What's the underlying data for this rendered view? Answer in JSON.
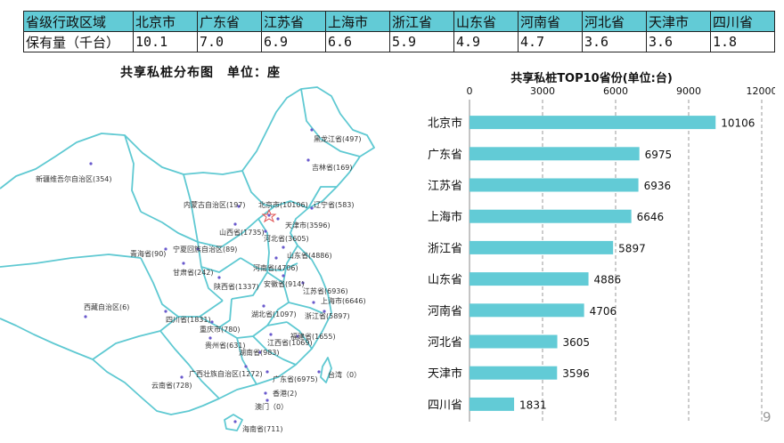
{
  "table": {
    "header_label": "省级行政区域",
    "value_label": "保有量（千台）",
    "regions": [
      "北京市",
      "广东省",
      "江苏省",
      "上海市",
      "浙江省",
      "山东省",
      "河南省",
      "河北省",
      "天津市",
      "四川省"
    ],
    "values": [
      "10.1",
      "7.0",
      "6.9",
      "6.6",
      "5.9",
      "4.9",
      "4.7",
      "3.6",
      "3.6",
      "1.8"
    ]
  },
  "map": {
    "title": "共享私桩分布图　单位：座",
    "line_color": "#5fc9d2",
    "dot_color": "#6a5acd",
    "capital_marker_color": "#e05050",
    "labels": [
      {
        "id": "heilongjiang",
        "text": "黑龙江省(497)"
      },
      {
        "id": "jilin",
        "text": "吉林省(169)"
      },
      {
        "id": "xinjiang",
        "text": "新疆维吾尔自治区(354)"
      },
      {
        "id": "neimenggu",
        "text": "内蒙古自治区(197)"
      },
      {
        "id": "beijing",
        "text": "北京市(10106)"
      },
      {
        "id": "liaoning",
        "text": "辽宁省(583)"
      },
      {
        "id": "tianjin",
        "text": "天津市(3596)"
      },
      {
        "id": "shanxi",
        "text": "山西省(1735)"
      },
      {
        "id": "hebei",
        "text": "河北省(3605)"
      },
      {
        "id": "qinghai",
        "text": "青海省(90)"
      },
      {
        "id": "ningxia",
        "text": "宁夏回族自治区(89)"
      },
      {
        "id": "shandong",
        "text": "山东省(4886)"
      },
      {
        "id": "gansu",
        "text": "甘肃省(242)"
      },
      {
        "id": "henan",
        "text": "河南省(4706)"
      },
      {
        "id": "shaanxi",
        "text": "陕西省(1337)"
      },
      {
        "id": "anhui",
        "text": "安徽省(914)"
      },
      {
        "id": "jiangsu",
        "text": "江苏省(6936)"
      },
      {
        "id": "shanghai",
        "text": "上海市(6646)"
      },
      {
        "id": "xizang",
        "text": "西藏自治区(6)"
      },
      {
        "id": "hubei",
        "text": "湖北省(1097)"
      },
      {
        "id": "zhejiang",
        "text": "浙江省(5897)"
      },
      {
        "id": "sichuan",
        "text": "四川省(1831)"
      },
      {
        "id": "chongqing",
        "text": "重庆市(780)"
      },
      {
        "id": "fujian",
        "text": "福建省(1655)"
      },
      {
        "id": "guizhou",
        "text": "贵州省(631)"
      },
      {
        "id": "jiangxi",
        "text": "江西省(1069)"
      },
      {
        "id": "hunan",
        "text": "湖南省(983)"
      },
      {
        "id": "guangxi",
        "text": "广西壮族自治区(1272)"
      },
      {
        "id": "taiwan",
        "text": "台湾（0）"
      },
      {
        "id": "guangdong",
        "text": "广东省(6975)"
      },
      {
        "id": "yunnan",
        "text": "云南省(728)"
      },
      {
        "id": "xianggang",
        "text": "香港(2)"
      },
      {
        "id": "aomen",
        "text": "澳门（0）"
      },
      {
        "id": "hainan",
        "text": "海南省(711)"
      }
    ]
  },
  "chart_data": {
    "type": "bar",
    "orientation": "horizontal",
    "title": "共享私桩TOP10省份(单位:台)",
    "categories": [
      "北京市",
      "广东省",
      "江苏省",
      "上海市",
      "浙江省",
      "山东省",
      "河南省",
      "河北省",
      "天津市",
      "四川省"
    ],
    "values": [
      10106,
      6975,
      6936,
      6646,
      5897,
      4886,
      4706,
      3605,
      3596,
      1831
    ],
    "xlim": [
      0,
      12000
    ],
    "xticks": [
      0,
      3000,
      6000,
      9000,
      12000
    ],
    "axis_position": "top",
    "grid": "vertical dashed",
    "bar_color": "#62cbd6"
  },
  "page_number": "9"
}
